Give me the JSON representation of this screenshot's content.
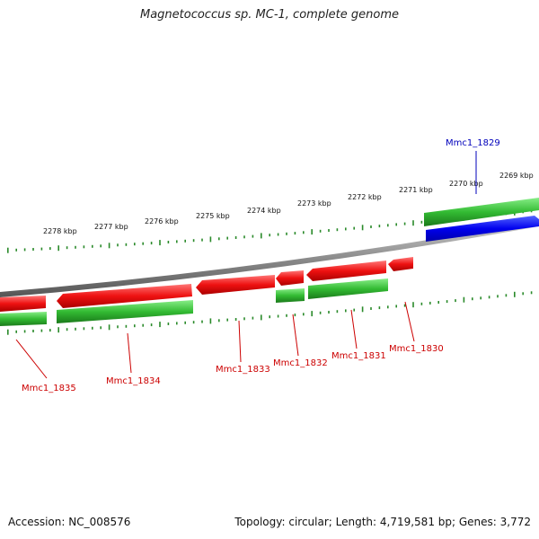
{
  "header": {
    "title": "Magnetococcus sp. MC-1, complete genome"
  },
  "footer": {
    "accession": "Accession: NC_008576",
    "info": "Topology: circular; Length: 4,719,581 bp; Genes: 3,772"
  },
  "colors": {
    "backbone": "#8a8a8a",
    "forward_gene": "#3cc43c",
    "reverse_gene": "#ee1111",
    "other_gene": "#0000dd",
    "tick": "#2a8a2a",
    "label_reverse": "#cc0000",
    "label_forward": "#0000bb"
  },
  "ticks": {
    "major": [
      "2278 kbp",
      "2277 kbp",
      "2276 kbp",
      "2275 kbp",
      "2274 kbp",
      "2273 kbp",
      "2272 kbp",
      "2271 kbp",
      "2270 kbp",
      "2269 kbp"
    ]
  },
  "genes": [
    {
      "label": "Mmc1_1829",
      "strand": "+",
      "color_key": "other"
    },
    {
      "label": "Mmc1_1830",
      "strand": "-"
    },
    {
      "label": "Mmc1_1831",
      "strand": "-"
    },
    {
      "label": "Mmc1_1832",
      "strand": "-"
    },
    {
      "label": "Mmc1_1833",
      "strand": "-"
    },
    {
      "label": "Mmc1_1834",
      "strand": "-"
    },
    {
      "label": "Mmc1_1835",
      "strand": "-"
    }
  ]
}
